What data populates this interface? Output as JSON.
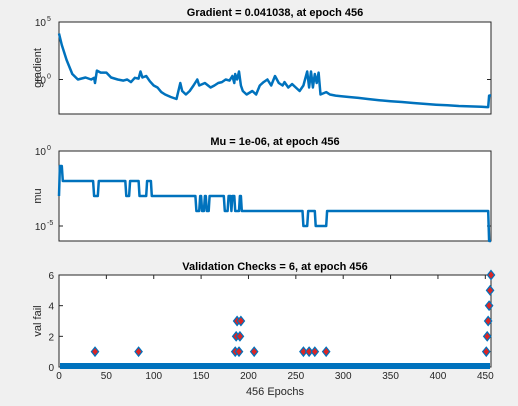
{
  "chart_data": [
    {
      "type": "line",
      "title": "Gradient = 0.041038, at epoch 456",
      "ylabel": "gradient",
      "yscale": "log",
      "xlim": [
        0,
        456
      ],
      "ylim": [
        0.001,
        100000
      ],
      "yticks": [
        {
          "value": 100000,
          "base": "10",
          "exp": "5"
        },
        {
          "value": 1,
          "base": "10",
          "exp": "0"
        }
      ],
      "line_color": "#0072bd",
      "points": [
        [
          0,
          10000
        ],
        [
          3,
          1000
        ],
        [
          8,
          50
        ],
        [
          14,
          3
        ],
        [
          20,
          1
        ],
        [
          28,
          1.5
        ],
        [
          34,
          1
        ],
        [
          37,
          1.4
        ],
        [
          38,
          0.5
        ],
        [
          40,
          6
        ],
        [
          44,
          4
        ],
        [
          50,
          4
        ],
        [
          55,
          1.5
        ],
        [
          62,
          1
        ],
        [
          68,
          0.8
        ],
        [
          72,
          1
        ],
        [
          76,
          0.6
        ],
        [
          80,
          1.4
        ],
        [
          84,
          1.2
        ],
        [
          86,
          5
        ],
        [
          88,
          1.5
        ],
        [
          92,
          2
        ],
        [
          96,
          0.7
        ],
        [
          100,
          0.3
        ],
        [
          104,
          0.2
        ],
        [
          108,
          0.08
        ],
        [
          112,
          0.05
        ],
        [
          118,
          0.03
        ],
        [
          124,
          0.02
        ],
        [
          128,
          0.5
        ],
        [
          130,
          0.1
        ],
        [
          134,
          0.05
        ],
        [
          138,
          0.1
        ],
        [
          142,
          0.3
        ],
        [
          146,
          1
        ],
        [
          148,
          0.3
        ],
        [
          154,
          0.5
        ],
        [
          160,
          0.2
        ],
        [
          164,
          0.3
        ],
        [
          168,
          0.5
        ],
        [
          172,
          0.6
        ],
        [
          176,
          1
        ],
        [
          180,
          0.8
        ],
        [
          183,
          2
        ],
        [
          185,
          0.5
        ],
        [
          186,
          3
        ],
        [
          188,
          1
        ],
        [
          190,
          5
        ],
        [
          192,
          0.3
        ],
        [
          194,
          0.1
        ],
        [
          198,
          0.05
        ],
        [
          204,
          0.1
        ],
        [
          208,
          0.05
        ],
        [
          212,
          0.3
        ],
        [
          216,
          0.6
        ],
        [
          220,
          1
        ],
        [
          224,
          0.3
        ],
        [
          228,
          2
        ],
        [
          232,
          0.5
        ],
        [
          236,
          0.3
        ],
        [
          238,
          0.6
        ],
        [
          242,
          0.2
        ],
        [
          246,
          0.4
        ],
        [
          250,
          0.2
        ],
        [
          254,
          0.1
        ],
        [
          258,
          0.3
        ],
        [
          262,
          5
        ],
        [
          264,
          0.2
        ],
        [
          266,
          5
        ],
        [
          268,
          0.2
        ],
        [
          270,
          3
        ],
        [
          272,
          0.5
        ],
        [
          274,
          4
        ],
        [
          276,
          0.05
        ],
        [
          282,
          0.08
        ],
        [
          286,
          0.05
        ],
        [
          292,
          0.04
        ],
        [
          298,
          0.035
        ],
        [
          306,
          0.03
        ],
        [
          316,
          0.025
        ],
        [
          326,
          0.02
        ],
        [
          338,
          0.016
        ],
        [
          350,
          0.013
        ],
        [
          362,
          0.011
        ],
        [
          374,
          0.009
        ],
        [
          386,
          0.0075
        ],
        [
          398,
          0.0065
        ],
        [
          410,
          0.0057
        ],
        [
          422,
          0.005
        ],
        [
          434,
          0.0046
        ],
        [
          446,
          0.0043
        ],
        [
          452,
          0.004
        ],
        [
          453,
          0.004
        ],
        [
          454,
          0.04
        ],
        [
          456,
          0.041038
        ]
      ]
    },
    {
      "type": "line",
      "title": "Mu = 1e-06, at epoch 456",
      "ylabel": "mu",
      "yscale": "log",
      "xlim": [
        0,
        456
      ],
      "ylim": [
        1e-06,
        1
      ],
      "yticks": [
        {
          "value": 1,
          "base": "10",
          "exp": "0"
        },
        {
          "value": 1e-05,
          "base": "10",
          "exp": "-5"
        }
      ],
      "line_color": "#0072bd",
      "points": [
        [
          0,
          0.001
        ],
        [
          1,
          0.1
        ],
        [
          3,
          0.1
        ],
        [
          4,
          0.01
        ],
        [
          36,
          0.01
        ],
        [
          37,
          0.001
        ],
        [
          41,
          0.001
        ],
        [
          42,
          0.01
        ],
        [
          70,
          0.01
        ],
        [
          71,
          0.001
        ],
        [
          74,
          0.001
        ],
        [
          75,
          0.01
        ],
        [
          84,
          0.01
        ],
        [
          85,
          0.001
        ],
        [
          92,
          0.001
        ],
        [
          93,
          0.01
        ],
        [
          97,
          0.01
        ],
        [
          98,
          0.001
        ],
        [
          144,
          0.001
        ],
        [
          145,
          0.0001
        ],
        [
          148,
          0.0001
        ],
        [
          149,
          0.001
        ],
        [
          150,
          0.001
        ],
        [
          151,
          0.0001
        ],
        [
          153,
          0.0001
        ],
        [
          154,
          0.001
        ],
        [
          155,
          0.001
        ],
        [
          156,
          0.0001
        ],
        [
          158,
          0.0001
        ],
        [
          159,
          0.001
        ],
        [
          174,
          0.001
        ],
        [
          175,
          0.0001
        ],
        [
          178,
          0.0001
        ],
        [
          179,
          0.001
        ],
        [
          181,
          0.001
        ],
        [
          182,
          0.0001
        ],
        [
          183,
          0.001
        ],
        [
          185,
          0.001
        ],
        [
          186,
          0.0001
        ],
        [
          190,
          0.0001
        ],
        [
          191,
          0.001
        ],
        [
          192,
          0.001
        ],
        [
          193,
          0.0001
        ],
        [
          257,
          0.0001
        ],
        [
          258,
          1e-05
        ],
        [
          262,
          1e-05
        ],
        [
          263,
          0.0001
        ],
        [
          270,
          0.0001
        ],
        [
          271,
          1e-05
        ],
        [
          282,
          1e-05
        ],
        [
          283,
          0.0001
        ],
        [
          453,
          0.0001
        ],
        [
          454,
          1e-06
        ],
        [
          456,
          1e-06
        ]
      ]
    },
    {
      "type": "scatter",
      "title": "Validation Checks = 6, at epoch 456",
      "ylabel": "val fail",
      "xlabel": "456 Epochs",
      "xlim": [
        0,
        456
      ],
      "ylim": [
        0,
        6
      ],
      "xticks": [
        0,
        50,
        100,
        150,
        200,
        250,
        300,
        350,
        400,
        450
      ],
      "yticks": [
        0,
        2,
        4,
        6
      ],
      "baseline_color": "#0072bd",
      "marker_edge_color": "#0072bd",
      "marker_fill_color": "#d92626",
      "points": [
        [
          38,
          1
        ],
        [
          84,
          1
        ],
        [
          186,
          1
        ],
        [
          187,
          2
        ],
        [
          188,
          3
        ],
        [
          190,
          1
        ],
        [
          191,
          2
        ],
        [
          192,
          3
        ],
        [
          206,
          1
        ],
        [
          258,
          1
        ],
        [
          264,
          1
        ],
        [
          270,
          1
        ],
        [
          282,
          1
        ],
        [
          451,
          1
        ],
        [
          452,
          2
        ],
        [
          453,
          3
        ],
        [
          454,
          4
        ],
        [
          455,
          5
        ],
        [
          456,
          6
        ]
      ]
    }
  ]
}
